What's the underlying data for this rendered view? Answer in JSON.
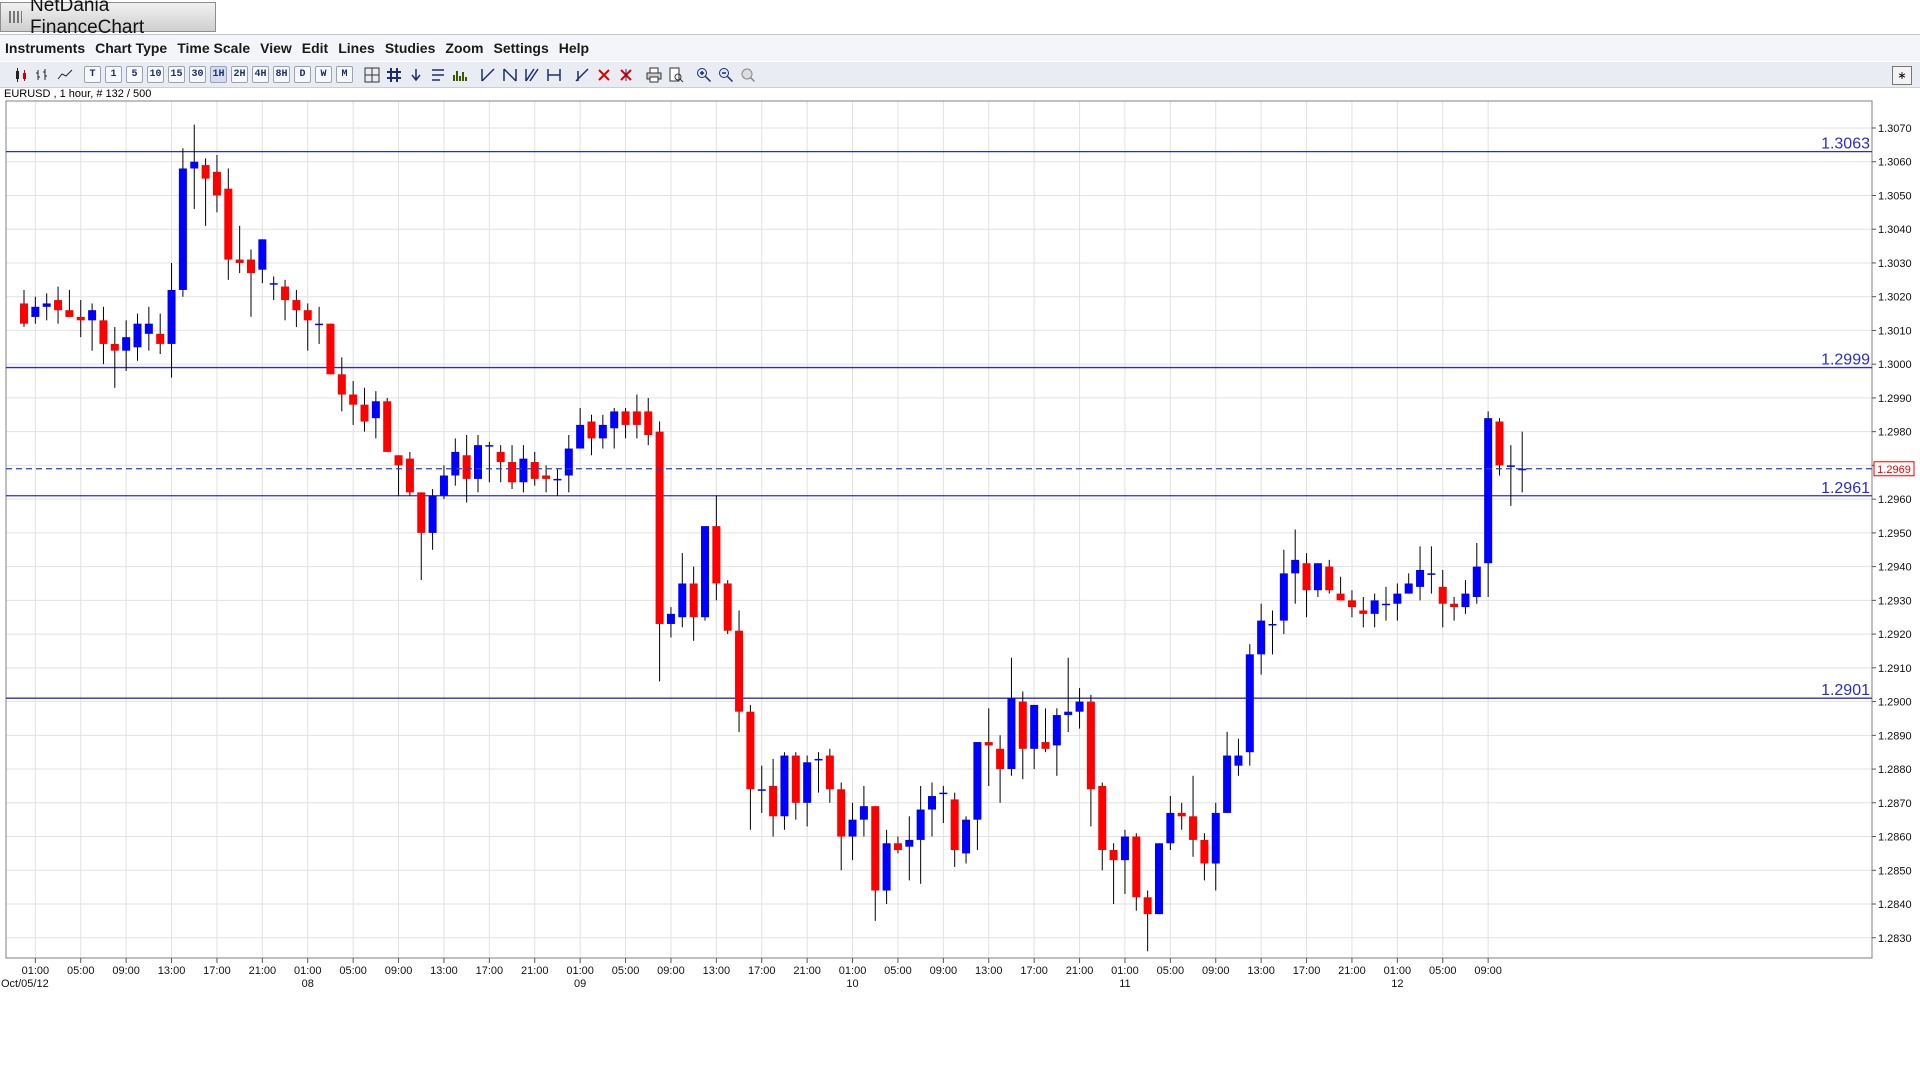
{
  "window": {
    "title": "NetDania FinanceChart"
  },
  "menu": [
    "Instruments",
    "Chart Type",
    "Time Scale",
    "View",
    "Edit",
    "Lines",
    "Studies",
    "Zoom",
    "Settings",
    "Help"
  ],
  "toolbar": {
    "timeframes": [
      "T",
      "1",
      "5",
      "10",
      "15",
      "30",
      "1H",
      "2H",
      "4H",
      "8H",
      "D",
      "W",
      "M"
    ],
    "active_timeframe": "1H"
  },
  "chart_info": "EURUSD , 1 hour, # 132 / 500",
  "chart_data": {
    "type": "candlestick",
    "symbol": "EURUSD",
    "interval": "1 hour",
    "ylim": [
      1.2824,
      1.3078
    ],
    "yticks": [
      "1.3070",
      "1.3060",
      "1.3050",
      "1.3040",
      "1.3030",
      "1.3020",
      "1.3010",
      "1.3000",
      "1.2990",
      "1.2980",
      "1.2970",
      "1.2960",
      "1.2950",
      "1.2940",
      "1.2930",
      "1.2920",
      "1.2910",
      "1.2900",
      "1.2890",
      "1.2880",
      "1.2870",
      "1.2860",
      "1.2850",
      "1.2840",
      "1.2830"
    ],
    "xticks": [
      {
        "i": 1,
        "time": "01:00",
        "date": "Oct/05/12"
      },
      {
        "i": 5,
        "time": "05:00",
        "date": ""
      },
      {
        "i": 9,
        "time": "09:00",
        "date": ""
      },
      {
        "i": 13,
        "time": "13:00",
        "date": ""
      },
      {
        "i": 17,
        "time": "17:00",
        "date": ""
      },
      {
        "i": 21,
        "time": "21:00",
        "date": ""
      },
      {
        "i": 25,
        "time": "01:00",
        "date": "08"
      },
      {
        "i": 29,
        "time": "05:00",
        "date": ""
      },
      {
        "i": 33,
        "time": "09:00",
        "date": ""
      },
      {
        "i": 37,
        "time": "13:00",
        "date": ""
      },
      {
        "i": 41,
        "time": "17:00",
        "date": ""
      },
      {
        "i": 45,
        "time": "21:00",
        "date": ""
      },
      {
        "i": 49,
        "time": "01:00",
        "date": "09"
      },
      {
        "i": 53,
        "time": "05:00",
        "date": ""
      },
      {
        "i": 57,
        "time": "09:00",
        "date": ""
      },
      {
        "i": 61,
        "time": "13:00",
        "date": ""
      },
      {
        "i": 65,
        "time": "17:00",
        "date": ""
      },
      {
        "i": 69,
        "time": "21:00",
        "date": ""
      },
      {
        "i": 73,
        "time": "01:00",
        "date": "10"
      },
      {
        "i": 77,
        "time": "05:00",
        "date": ""
      },
      {
        "i": 81,
        "time": "09:00",
        "date": ""
      },
      {
        "i": 85,
        "time": "13:00",
        "date": ""
      },
      {
        "i": 89,
        "time": "17:00",
        "date": ""
      },
      {
        "i": 93,
        "time": "21:00",
        "date": ""
      },
      {
        "i": 97,
        "time": "01:00",
        "date": "11"
      },
      {
        "i": 101,
        "time": "05:00",
        "date": ""
      },
      {
        "i": 105,
        "time": "09:00",
        "date": ""
      },
      {
        "i": 109,
        "time": "13:00",
        "date": ""
      },
      {
        "i": 113,
        "time": "17:00",
        "date": ""
      },
      {
        "i": 117,
        "time": "21:00",
        "date": ""
      },
      {
        "i": 121,
        "time": "01:00",
        "date": "12"
      },
      {
        "i": 125,
        "time": "05:00",
        "date": ""
      },
      {
        "i": 129,
        "time": "09:00",
        "date": ""
      }
    ],
    "levels": [
      {
        "value": 1.3063,
        "label": "1.3063"
      },
      {
        "value": 1.2999,
        "label": "1.2999"
      },
      {
        "value": 1.2961,
        "label": "1.2961"
      },
      {
        "value": 1.2901,
        "label": "1.2901"
      }
    ],
    "current_price": {
      "value": 1.2969,
      "label": "1.2969"
    },
    "colors": {
      "up": "#0000ff",
      "down": "#ff0000",
      "level": "#2b2bd0",
      "grid": "#e2e2e2",
      "current": "#2040d0"
    },
    "candles": [
      [
        1.3018,
        1.3022,
        1.3011,
        1.3012
      ],
      [
        1.3014,
        1.302,
        1.3012,
        1.3017
      ],
      [
        1.3017,
        1.3021,
        1.3013,
        1.3018
      ],
      [
        1.3019,
        1.3023,
        1.3012,
        1.3016
      ],
      [
        1.3016,
        1.3022,
        1.3014,
        1.3014
      ],
      [
        1.3014,
        1.3019,
        1.3008,
        1.3013
      ],
      [
        1.3013,
        1.3018,
        1.3004,
        1.3016
      ],
      [
        1.3013,
        1.3017,
        1.3,
        1.3006
      ],
      [
        1.3006,
        1.3011,
        1.2993,
        1.3004
      ],
      [
        1.3004,
        1.3013,
        1.2998,
        1.3008
      ],
      [
        1.3005,
        1.3015,
        1.3001,
        1.3012
      ],
      [
        1.3009,
        1.3017,
        1.3004,
        1.3012
      ],
      [
        1.3009,
        1.3015,
        1.3003,
        1.3006
      ],
      [
        1.3006,
        1.303,
        1.2996,
        1.3022
      ],
      [
        1.3022,
        1.3064,
        1.302,
        1.3058
      ],
      [
        1.3058,
        1.3071,
        1.3046,
        1.306
      ],
      [
        1.3059,
        1.3061,
        1.3041,
        1.3055
      ],
      [
        1.3057,
        1.3062,
        1.3045,
        1.305
      ],
      [
        1.3052,
        1.3058,
        1.3025,
        1.3031
      ],
      [
        1.3031,
        1.3041,
        1.3027,
        1.303
      ],
      [
        1.3031,
        1.3034,
        1.3014,
        1.3027
      ],
      [
        1.3028,
        1.3037,
        1.3024,
        1.3037
      ],
      [
        1.3024,
        1.3026,
        1.3019,
        1.3024
      ],
      [
        1.3023,
        1.3025,
        1.3013,
        1.3019
      ],
      [
        1.3019,
        1.3022,
        1.3011,
        1.3016
      ],
      [
        1.3016,
        1.3018,
        1.3004,
        1.3013
      ],
      [
        1.3012,
        1.3017,
        1.3006,
        1.3012
      ],
      [
        1.3012,
        1.3012,
        1.2997,
        1.2997
      ],
      [
        1.2997,
        1.3002,
        1.2986,
        1.2991
      ],
      [
        1.2991,
        1.2995,
        1.2982,
        1.2988
      ],
      [
        1.2988,
        1.2993,
        1.298,
        1.2983
      ],
      [
        1.2984,
        1.2992,
        1.2978,
        1.2989
      ],
      [
        1.2989,
        1.299,
        1.2974,
        1.2974
      ],
      [
        1.2973,
        1.2973,
        1.2961,
        1.297
      ],
      [
        1.2972,
        1.2974,
        1.2961,
        1.2962
      ],
      [
        1.2962,
        1.2962,
        1.2936,
        1.295
      ],
      [
        1.295,
        1.2963,
        1.2945,
        1.2961
      ],
      [
        1.2961,
        1.297,
        1.296,
        1.2967
      ],
      [
        1.2967,
        1.2978,
        1.2964,
        1.2974
      ],
      [
        1.2973,
        1.2979,
        1.2959,
        1.2966
      ],
      [
        1.2966,
        1.2979,
        1.2962,
        1.2976
      ],
      [
        1.2976,
        1.2977,
        1.2965,
        1.2976
      ],
      [
        1.2974,
        1.2976,
        1.2965,
        1.2971
      ],
      [
        1.2971,
        1.2976,
        1.2963,
        1.2965
      ],
      [
        1.2965,
        1.2976,
        1.2962,
        1.2972
      ],
      [
        1.2971,
        1.2974,
        1.2964,
        1.2966
      ],
      [
        1.2967,
        1.297,
        1.2962,
        1.2966
      ],
      [
        1.2966,
        1.2969,
        1.2961,
        1.2966
      ],
      [
        1.2967,
        1.2979,
        1.2962,
        1.2975
      ],
      [
        1.2975,
        1.2987,
        1.2975,
        1.2982
      ],
      [
        1.2983,
        1.2985,
        1.2973,
        1.2978
      ],
      [
        1.2978,
        1.2985,
        1.2975,
        1.2982
      ],
      [
        1.2981,
        1.2987,
        1.2975,
        1.2986
      ],
      [
        1.2986,
        1.2987,
        1.2978,
        1.2982
      ],
      [
        1.2986,
        1.2991,
        1.2978,
        1.2982
      ],
      [
        1.2986,
        1.299,
        1.2976,
        1.2979
      ],
      [
        1.298,
        1.2983,
        1.2906,
        1.2923
      ],
      [
        1.2923,
        1.2928,
        1.2919,
        1.2926
      ],
      [
        1.2925,
        1.2944,
        1.2922,
        1.2935
      ],
      [
        1.2935,
        1.294,
        1.2918,
        1.2925
      ],
      [
        1.2925,
        1.295,
        1.2924,
        1.2952
      ],
      [
        1.2952,
        1.2961,
        1.293,
        1.2935
      ],
      [
        1.2935,
        1.2936,
        1.292,
        1.2921
      ],
      [
        1.2921,
        1.2927,
        1.2891,
        1.2897
      ],
      [
        1.2897,
        1.2899,
        1.2862,
        1.2874
      ],
      [
        1.2874,
        1.2881,
        1.2867,
        1.2874
      ],
      [
        1.2875,
        1.2883,
        1.286,
        1.2866
      ],
      [
        1.2866,
        1.2885,
        1.2862,
        1.2884
      ],
      [
        1.2884,
        1.2885,
        1.2865,
        1.287
      ],
      [
        1.287,
        1.2884,
        1.2863,
        1.2882
      ],
      [
        1.2883,
        1.2885,
        1.2873,
        1.2883
      ],
      [
        1.2884,
        1.2886,
        1.287,
        1.2874
      ],
      [
        1.2874,
        1.2876,
        1.285,
        1.286
      ],
      [
        1.286,
        1.287,
        1.2853,
        1.2865
      ],
      [
        1.2865,
        1.2875,
        1.286,
        1.2869
      ],
      [
        1.2869,
        1.2869,
        1.2835,
        1.2844
      ],
      [
        1.2844,
        1.2862,
        1.284,
        1.2858
      ],
      [
        1.2858,
        1.286,
        1.2855,
        1.2856
      ],
      [
        1.2857,
        1.2866,
        1.2847,
        1.2859
      ],
      [
        1.2859,
        1.2875,
        1.2846,
        1.2868
      ],
      [
        1.2868,
        1.2876,
        1.286,
        1.2872
      ],
      [
        1.2873,
        1.2875,
        1.2864,
        1.2873
      ],
      [
        1.2871,
        1.2873,
        1.2851,
        1.2856
      ],
      [
        1.2855,
        1.2866,
        1.2852,
        1.2865
      ],
      [
        1.2865,
        1.2888,
        1.2856,
        1.2888
      ],
      [
        1.2888,
        1.2898,
        1.2875,
        1.2887
      ],
      [
        1.2886,
        1.289,
        1.287,
        1.288
      ],
      [
        1.288,
        1.2913,
        1.2878,
        1.2901
      ],
      [
        1.29,
        1.2903,
        1.2877,
        1.2886
      ],
      [
        1.2886,
        1.2899,
        1.288,
        1.2899
      ],
      [
        1.2888,
        1.2898,
        1.2885,
        1.2886
      ],
      [
        1.2887,
        1.2898,
        1.2878,
        1.2896
      ],
      [
        1.2896,
        1.2913,
        1.2891,
        1.2897
      ],
      [
        1.2897,
        1.2904,
        1.2892,
        1.29
      ],
      [
        1.29,
        1.2902,
        1.2863,
        1.2874
      ],
      [
        1.2875,
        1.2876,
        1.285,
        1.2856
      ],
      [
        1.2856,
        1.2858,
        1.284,
        1.2853
      ],
      [
        1.2853,
        1.2862,
        1.2843,
        1.286
      ],
      [
        1.286,
        1.2861,
        1.2838,
        1.2842
      ],
      [
        1.2842,
        1.2844,
        1.2826,
        1.2837
      ],
      [
        1.2837,
        1.2858,
        1.2837,
        1.2858
      ],
      [
        1.2858,
        1.2872,
        1.2856,
        1.2867
      ],
      [
        1.2867,
        1.287,
        1.2862,
        1.2866
      ],
      [
        1.2866,
        1.2878,
        1.2854,
        1.2859
      ],
      [
        1.2859,
        1.2861,
        1.2847,
        1.2852
      ],
      [
        1.2852,
        1.287,
        1.2844,
        1.2867
      ],
      [
        1.2867,
        1.2891,
        1.2867,
        1.2884
      ],
      [
        1.2881,
        1.2889,
        1.2878,
        1.2884
      ],
      [
        1.2885,
        1.2917,
        1.2881,
        1.2914
      ],
      [
        1.2914,
        1.2929,
        1.2908,
        1.2924
      ],
      [
        1.2923,
        1.2927,
        1.2914,
        1.2923
      ],
      [
        1.2924,
        1.2945,
        1.292,
        1.2938
      ],
      [
        1.2938,
        1.2951,
        1.2929,
        1.2942
      ],
      [
        1.2941,
        1.2944,
        1.2925,
        1.2933
      ],
      [
        1.2933,
        1.2941,
        1.2931,
        1.2941
      ],
      [
        1.294,
        1.2942,
        1.2932,
        1.2933
      ],
      [
        1.2932,
        1.2937,
        1.293,
        1.293
      ],
      [
        1.293,
        1.2933,
        1.2925,
        1.2928
      ],
      [
        1.2927,
        1.2931,
        1.2922,
        1.2926
      ],
      [
        1.2926,
        1.2932,
        1.2922,
        1.293
      ],
      [
        1.2929,
        1.2934,
        1.2924,
        1.2929
      ],
      [
        1.2929,
        1.2935,
        1.2924,
        1.2932
      ],
      [
        1.2932,
        1.2938,
        1.2932,
        1.2935
      ],
      [
        1.2934,
        1.2946,
        1.293,
        1.2939
      ],
      [
        1.2938,
        1.2946,
        1.2932,
        1.2938
      ],
      [
        1.2934,
        1.2939,
        1.2922,
        1.2929
      ],
      [
        1.2929,
        1.2931,
        1.2924,
        1.2928
      ],
      [
        1.2928,
        1.2936,
        1.2926,
        1.2932
      ],
      [
        1.2931,
        1.2947,
        1.2929,
        1.294
      ],
      [
        1.2941,
        1.2986,
        1.2931,
        1.2984
      ],
      [
        1.2983,
        1.2984,
        1.2967,
        1.297
      ],
      [
        1.297,
        1.2976,
        1.2958,
        1.297
      ],
      [
        1.2969,
        1.298,
        1.2962,
        1.2969
      ]
    ]
  }
}
